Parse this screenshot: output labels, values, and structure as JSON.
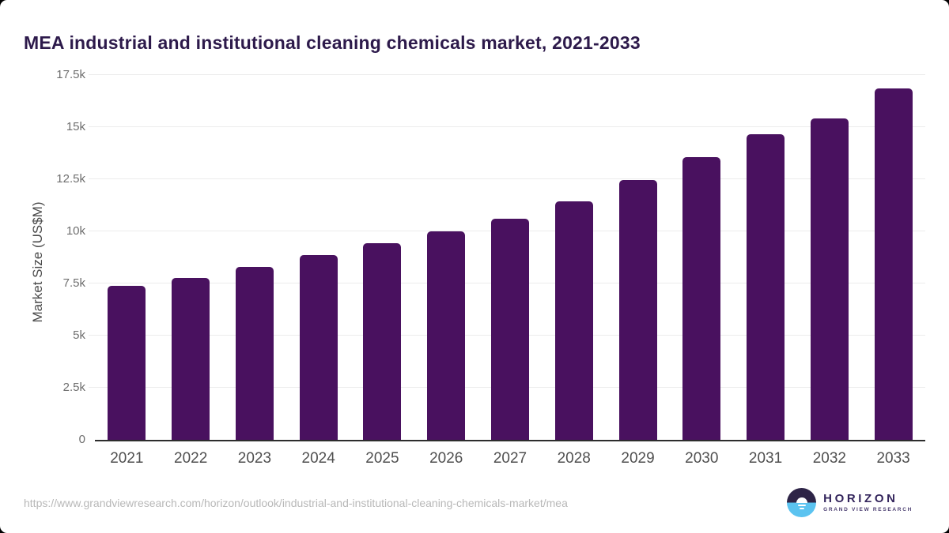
{
  "title": "MEA industrial and institutional cleaning chemicals market, 2021-2033",
  "chart_data": {
    "type": "bar",
    "title": "MEA industrial and institutional cleaning chemicals market, 2021-2033",
    "categories": [
      "2021",
      "2022",
      "2023",
      "2024",
      "2025",
      "2026",
      "2027",
      "2028",
      "2029",
      "2030",
      "2031",
      "2032",
      "2033"
    ],
    "values": [
      7400,
      7750,
      8300,
      8850,
      9450,
      10000,
      10600,
      11450,
      12450,
      13550,
      14650,
      15400,
      16850
    ],
    "xlabel": "",
    "ylabel": "Market Size (US$M)",
    "ylim": [
      0,
      17500
    ],
    "yticks": [
      0,
      2500,
      5000,
      7500,
      10000,
      12500,
      15000,
      17500
    ],
    "ytick_labels": [
      "0",
      "2.5k",
      "5k",
      "7.5k",
      "10k",
      "12.5k",
      "15k",
      "17.5k"
    ],
    "grid": true,
    "legend": "none",
    "bar_color": "#49115f"
  },
  "footer": {
    "source_url": "https://www.grandviewresearch.com/horizon/outlook/industrial-and-institutional-cleaning-chemicals-market/mea",
    "logo": {
      "name": "HORIZON",
      "subtext": "GRAND VIEW RESEARCH"
    }
  },
  "colors": {
    "bar": "#49115f",
    "title": "#2d1a4b",
    "tick_label": "#6e6e6e",
    "x_label": "#4f4f4f",
    "grid": "#ececec",
    "axis_line": "#2d2d2d",
    "url": "#b8b8b8",
    "logo_dark": "#2e2447",
    "logo_blue": "#5bc3f0",
    "logo_text": "#33255c"
  }
}
